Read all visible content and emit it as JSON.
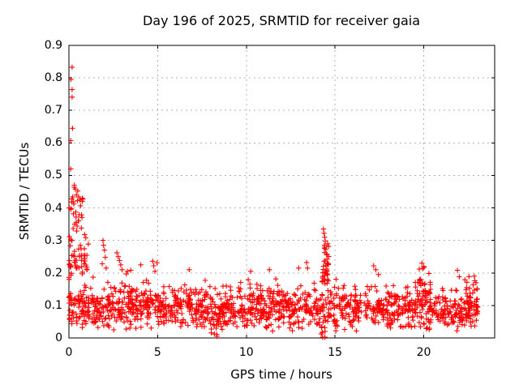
{
  "chart_data": {
    "type": "scatter",
    "title": "Day 196 of 2025, SRMTID for receiver gaia",
    "xlabel": "GPS time / hours",
    "ylabel": "SRMTID / TECUs",
    "xlim": [
      0,
      24
    ],
    "ylim": [
      0,
      0.9
    ],
    "xticks": [
      0,
      5,
      10,
      15,
      20
    ],
    "xtick_labels": [
      "0",
      "5",
      "10",
      "15",
      "20"
    ],
    "yticks": [
      0,
      0.1,
      0.2,
      0.3,
      0.4,
      0.5,
      0.6,
      0.7,
      0.8,
      0.9
    ],
    "ytick_labels": [
      "0",
      "0.1",
      "0.2",
      "0.3",
      "0.4",
      "0.5",
      "0.6",
      "0.7",
      "0.8",
      "0.9"
    ],
    "grid": true,
    "legend": "none",
    "marker": "plus",
    "marker_color": "#ff0000",
    "grid_color": "#b0b0b0",
    "border_color": "#000000",
    "x_data_range": [
      0,
      23.05
    ],
    "series_name": "SRMTID",
    "outlier_points": [
      [
        0.18,
        0.833
      ],
      [
        0.11,
        0.795
      ],
      [
        0.18,
        0.764
      ],
      [
        0.18,
        0.741
      ],
      [
        0.2,
        0.645
      ],
      [
        0.1,
        0.607
      ],
      [
        0.1,
        0.52
      ],
      [
        0.3,
        0.47
      ],
      [
        0.36,
        0.458
      ],
      [
        0.5,
        0.452
      ],
      [
        0.42,
        0.44
      ],
      [
        0.55,
        0.434
      ],
      [
        0.62,
        0.424
      ],
      [
        0.02,
        0.4
      ],
      [
        0.25,
        0.382
      ],
      [
        0.4,
        0.372
      ],
      [
        0.55,
        0.36
      ],
      [
        0.32,
        0.35
      ],
      [
        0.46,
        0.344
      ],
      [
        0.7,
        0.338
      ],
      [
        0.03,
        0.312
      ],
      [
        0.1,
        0.302
      ],
      [
        0.88,
        0.318
      ],
      [
        0.95,
        0.308
      ],
      [
        1.92,
        0.3
      ],
      [
        1.95,
        0.285
      ],
      [
        2.0,
        0.27
      ],
      [
        2.05,
        0.248
      ],
      [
        1.88,
        0.228
      ],
      [
        2.1,
        0.215
      ],
      [
        2.7,
        0.262
      ],
      [
        2.78,
        0.25
      ],
      [
        2.85,
        0.238
      ],
      [
        2.92,
        0.225
      ],
      [
        3.0,
        0.21
      ],
      [
        3.3,
        0.205
      ],
      [
        4.05,
        0.225
      ],
      [
        4.72,
        0.236
      ],
      [
        4.78,
        0.222
      ],
      [
        4.85,
        0.205
      ],
      [
        6.78,
        0.21
      ],
      [
        8.2,
        0.012
      ],
      [
        8.3,
        0.03
      ],
      [
        8.35,
        0.005
      ],
      [
        10.25,
        0.205
      ],
      [
        11.3,
        0.21
      ],
      [
        12.95,
        0.215
      ],
      [
        13.4,
        0.232
      ],
      [
        13.45,
        0.215
      ],
      [
        14.35,
        0.335
      ],
      [
        14.38,
        0.322
      ],
      [
        14.42,
        0.31
      ],
      [
        14.45,
        0.298
      ],
      [
        14.4,
        0.285
      ],
      [
        14.48,
        0.272
      ],
      [
        14.52,
        0.258
      ],
      [
        14.55,
        0.242
      ],
      [
        14.58,
        0.228
      ],
      [
        14.3,
        0.002
      ],
      [
        14.44,
        0.02
      ],
      [
        15.05,
        0.022
      ],
      [
        15.1,
        0.04
      ],
      [
        17.18,
        0.222
      ],
      [
        17.3,
        0.21
      ],
      [
        17.45,
        0.195
      ],
      [
        19.9,
        0.23
      ],
      [
        20.0,
        0.22
      ],
      [
        19.75,
        0.212
      ],
      [
        21.9,
        0.208
      ],
      [
        22.0,
        0.188
      ],
      [
        22.85,
        0.19
      ],
      [
        22.95,
        0.17
      ],
      [
        23.0,
        0.15
      ],
      [
        23.02,
        0.12
      ],
      [
        23.05,
        0.095
      ]
    ],
    "baseline_segments": [
      [
        0.0,
        0.15,
        12,
        0.13,
        0.06,
        0.04,
        0.3
      ],
      [
        0.0,
        1.1,
        70,
        0.095,
        0.04,
        0.03,
        0.17
      ],
      [
        0.0,
        1.1,
        45,
        0.235,
        0.045,
        0.175,
        0.33
      ],
      [
        0.1,
        0.8,
        20,
        0.4,
        0.045,
        0.33,
        0.475
      ],
      [
        1.1,
        2.2,
        70,
        0.085,
        0.038,
        0.03,
        0.235
      ],
      [
        2.2,
        5.0,
        190,
        0.1,
        0.038,
        0.025,
        0.26
      ],
      [
        5.0,
        8.0,
        200,
        0.095,
        0.032,
        0.03,
        0.225
      ],
      [
        8.0,
        8.5,
        35,
        0.07,
        0.045,
        0.003,
        0.19
      ],
      [
        8.5,
        14.2,
        380,
        0.093,
        0.034,
        0.015,
        0.225
      ],
      [
        14.25,
        14.65,
        35,
        0.23,
        0.05,
        0.165,
        0.335
      ],
      [
        14.2,
        14.7,
        30,
        0.085,
        0.05,
        0.002,
        0.16
      ],
      [
        14.7,
        15.2,
        30,
        0.08,
        0.045,
        0.01,
        0.19
      ],
      [
        15.2,
        19.5,
        270,
        0.088,
        0.032,
        0.02,
        0.215
      ],
      [
        19.5,
        20.4,
        90,
        0.115,
        0.045,
        0.025,
        0.23
      ],
      [
        20.4,
        22.3,
        120,
        0.085,
        0.03,
        0.02,
        0.18
      ],
      [
        22.3,
        23.05,
        70,
        0.095,
        0.04,
        0.02,
        0.19
      ]
    ],
    "seed": 196
  }
}
